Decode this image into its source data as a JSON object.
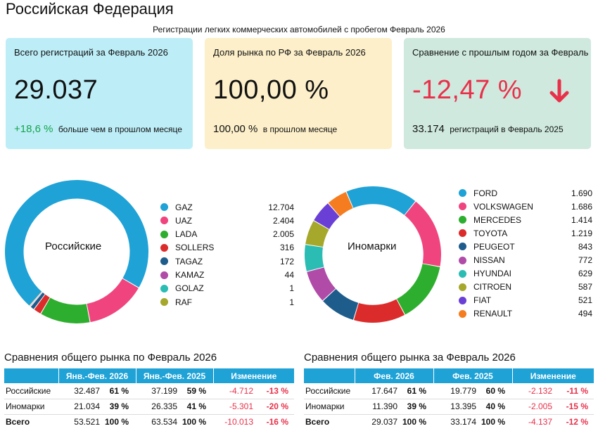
{
  "header": {
    "title": "Российская Федерация",
    "subtitle": "Регистрации легких  коммерческих  автомобилей с пробегом Февраль 2026"
  },
  "cards": [
    {
      "title": "Всего регистраций за Февраль 2026",
      "value": "29.037",
      "foot_highlight": "+18,6 %",
      "foot_text": "больше чем в прошлом месяце",
      "highlight_color": "#16a34a"
    },
    {
      "title": "Доля рынка по РФ за Февраль 2026",
      "value": "100,00 %",
      "foot_highlight": "100,00 %",
      "foot_text": "в прошлом месяце",
      "highlight_color": "#111111"
    },
    {
      "title": "Сравнение с прошлым годом за Февраль",
      "value": "-12,47 %",
      "foot_highlight": "33.174",
      "foot_text": "регистраций в Февраль 2025",
      "value_color": "#e8304a",
      "icon": "arrow-down-icon"
    }
  ],
  "chart_data": [
    {
      "type": "pie",
      "center_label": "Российские",
      "categories": [
        "GAZ",
        "UAZ",
        "LADA",
        "SOLLERS",
        "TAGAZ",
        "KAMAZ",
        "GOLAZ",
        "RAF"
      ],
      "values": [
        12704,
        2404,
        2005,
        316,
        172,
        44,
        1,
        1
      ],
      "value_labels": [
        "12.704",
        "2.404",
        "2.005",
        "316",
        "172",
        "44",
        "1",
        "1"
      ],
      "colors": [
        "#1fa2d6",
        "#f0447e",
        "#2eae2e",
        "#dc2b2b",
        "#1e5c8c",
        "#b04ba8",
        "#2bbcb4",
        "#a5a82a"
      ]
    },
    {
      "type": "pie",
      "center_label": "Иномарки",
      "categories": [
        "FORD",
        "VOLKSWAGEN",
        "MERCEDES",
        "TOYOTA",
        "PEUGEOT",
        "NISSAN",
        "HYUNDAI",
        "CITROEN",
        "FIAT",
        "RENAULT"
      ],
      "values": [
        1690,
        1686,
        1414,
        1219,
        843,
        772,
        629,
        587,
        521,
        494
      ],
      "value_labels": [
        "1.690",
        "1.686",
        "1.414",
        "1.219",
        "843",
        "772",
        "629",
        "587",
        "521",
        "494"
      ],
      "colors": [
        "#1fa2d6",
        "#f0447e",
        "#2eae2e",
        "#dc2b2b",
        "#1e5c8c",
        "#b04ba8",
        "#2bbcb4",
        "#a5a82a",
        "#6a3fd6",
        "#f57c1f"
      ]
    }
  ],
  "tables": [
    {
      "title": "Сравнения общего рынка по Февраль 2026",
      "headers": [
        "Янв.-Фев. 2026",
        "Янв.-Фев. 2025",
        "Изменение"
      ],
      "rows": [
        {
          "name": "Российские",
          "v1": "32.487",
          "p1": "61 %",
          "v2": "37.199",
          "p2": "59 %",
          "d": "-4.712",
          "dp": "-13 %"
        },
        {
          "name": "Иномарки",
          "v1": "21.034",
          "p1": "39 %",
          "v2": "26.335",
          "p2": "41 %",
          "d": "-5.301",
          "dp": "-20 %"
        },
        {
          "name": "Всего",
          "v1": "53.521",
          "p1": "100 %",
          "v2": "63.534",
          "p2": "100 %",
          "d": "-10.013",
          "dp": "-16 %"
        }
      ]
    },
    {
      "title": "Сравнения общего рынка за Февраль 2026",
      "headers": [
        "Фев. 2026",
        "Фев. 2025",
        "Изменение"
      ],
      "rows": [
        {
          "name": "Российские",
          "v1": "17.647",
          "p1": "61 %",
          "v2": "19.779",
          "p2": "60 %",
          "d": "-2.132",
          "dp": "-11 %"
        },
        {
          "name": "Иномарки",
          "v1": "11.390",
          "p1": "39 %",
          "v2": "13.395",
          "p2": "40 %",
          "d": "-2.005",
          "dp": "-15 %"
        },
        {
          "name": "Всего",
          "v1": "29.037",
          "p1": "100 %",
          "v2": "33.174",
          "p2": "100 %",
          "d": "-4.137",
          "dp": "-12 %"
        }
      ]
    }
  ]
}
